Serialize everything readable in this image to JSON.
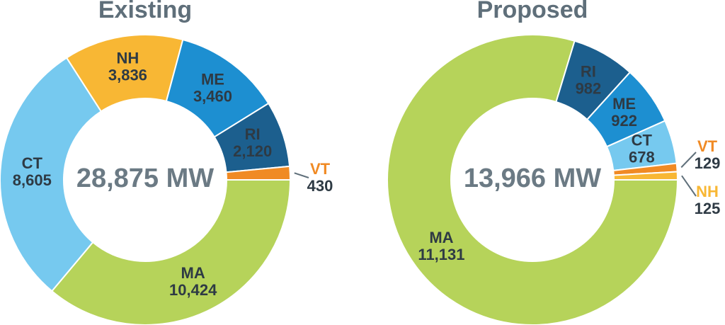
{
  "chart_data": [
    {
      "type": "pie",
      "title": "Existing",
      "center_label": "28,875 MW",
      "categories": [
        "MA",
        "CT",
        "NH",
        "ME",
        "RI",
        "VT"
      ],
      "values": [
        10424,
        8605,
        3836,
        3460,
        2120,
        430
      ],
      "value_labels": [
        "10,424",
        "8,605",
        "3,836",
        "3,460",
        "2,120",
        "430"
      ],
      "colors": [
        "#b6d35a",
        "#76c9ef",
        "#f8b734",
        "#1d8fd1",
        "#1c5f8e",
        "#f08a24"
      ]
    },
    {
      "type": "pie",
      "title": "Proposed",
      "center_label": "13,966 MW",
      "categories": [
        "MA",
        "RI",
        "ME",
        "CT",
        "VT",
        "NH"
      ],
      "values": [
        11131,
        982,
        922,
        678,
        129,
        125
      ],
      "value_labels": [
        "11,131",
        "982",
        "922",
        "678",
        "129",
        "125"
      ],
      "colors": [
        "#b6d35a",
        "#1c5f8e",
        "#1d8fd1",
        "#76c9ef",
        "#f08a24",
        "#f8b734"
      ]
    }
  ]
}
